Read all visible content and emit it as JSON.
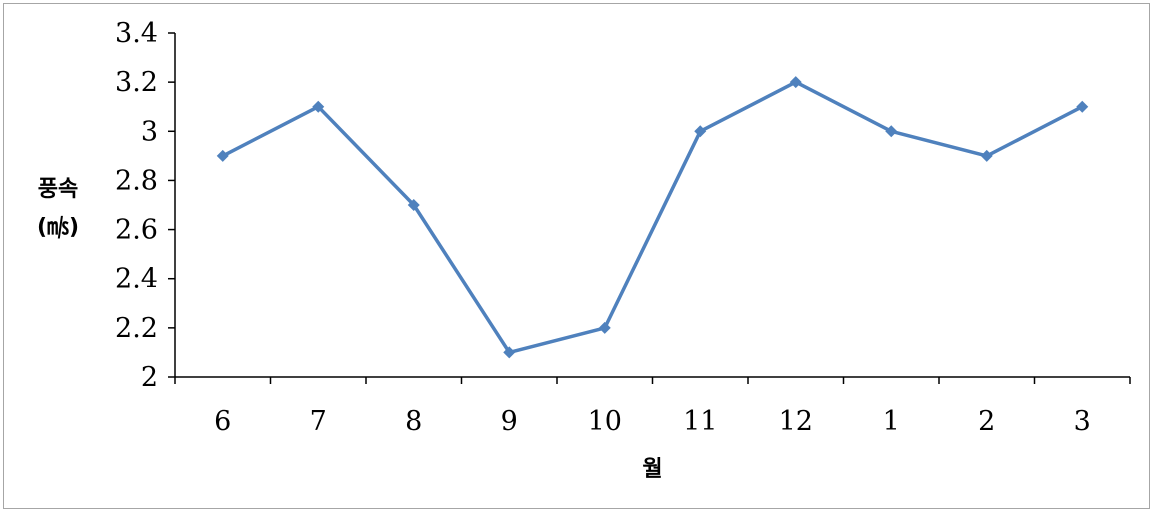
{
  "chart_data": {
    "type": "line",
    "categories": [
      "6",
      "7",
      "8",
      "9",
      "10",
      "11",
      "12",
      "1",
      "2",
      "3"
    ],
    "series": [
      {
        "values": [
          2.9,
          3.1,
          2.7,
          2.1,
          2.2,
          3.0,
          3.2,
          3.0,
          2.9,
          3.1
        ]
      }
    ],
    "y_ticks": [
      "2",
      "2.2",
      "2.4",
      "2.6",
      "2.8",
      "3",
      "3.2",
      "3.4"
    ],
    "ylim": [
      2,
      3.4
    ],
    "xlabel": "월",
    "ylabel_lines": [
      "풍속",
      "(㎧)"
    ],
    "grid": false,
    "legend": "none",
    "colors": {
      "series": "#4f81bd",
      "axis": "#000000",
      "border": "#a6a6a6"
    },
    "marker": "diamond"
  }
}
